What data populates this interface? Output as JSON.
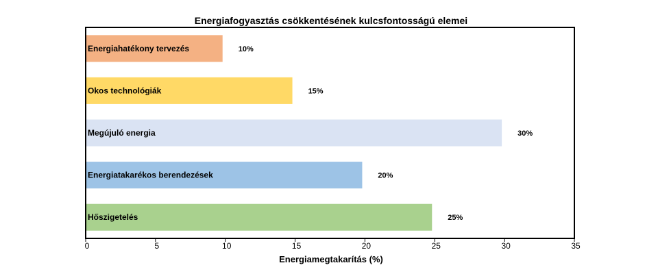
{
  "chart_data": {
    "type": "bar",
    "orientation": "horizontal",
    "title": "Energiafogyasztás csökkentésének kulcsfontosságú elemei",
    "xlabel": "Energiamegtakarítás (%)",
    "ylabel": "",
    "xlim": [
      0,
      35
    ],
    "xticks": [
      "0",
      "5",
      "10",
      "15",
      "20",
      "25",
      "30",
      "35"
    ],
    "grid": false,
    "categories": [
      "Energiahatékony tervezés",
      "Okos technológiák",
      "Megújuló energia",
      "Energiatakarékos berendezések",
      "Hőszigetelés"
    ],
    "values": [
      10,
      15,
      30,
      20,
      25
    ],
    "value_labels": [
      "10%",
      "15%",
      "30%",
      "20%",
      "25%"
    ],
    "colors": [
      "#f4b183",
      "#ffd966",
      "#dae3f3",
      "#9dc3e6",
      "#a9d18e"
    ]
  }
}
